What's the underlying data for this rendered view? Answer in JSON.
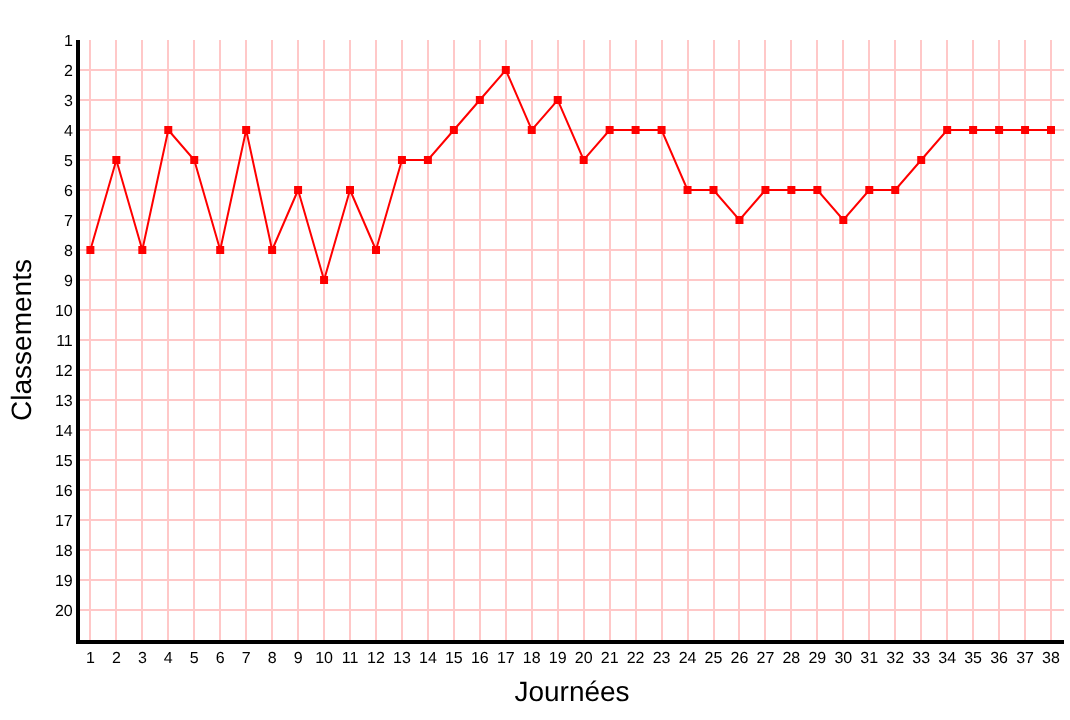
{
  "chart_data": {
    "type": "line",
    "xlabel": "Journées",
    "ylabel": "Classements",
    "x": [
      1,
      2,
      3,
      4,
      5,
      6,
      7,
      8,
      9,
      10,
      11,
      12,
      13,
      14,
      15,
      16,
      17,
      18,
      19,
      20,
      21,
      22,
      23,
      24,
      25,
      26,
      27,
      28,
      29,
      30,
      31,
      32,
      33,
      34,
      35,
      36,
      37,
      38
    ],
    "series": [
      {
        "color": "#ff0000",
        "values": [
          8,
          5,
          8,
          4,
          5,
          8,
          4,
          8,
          6,
          9,
          6,
          8,
          5,
          5,
          4,
          3,
          2,
          4,
          3,
          5,
          4,
          4,
          4,
          6,
          6,
          7,
          6,
          6,
          6,
          7,
          6,
          6,
          5,
          4,
          4,
          4,
          4,
          4
        ]
      }
    ],
    "xlim": [
      0.6,
      38.5
    ],
    "ylim": [
      21,
      1
    ],
    "xticks": [
      1,
      2,
      3,
      4,
      5,
      6,
      7,
      8,
      9,
      10,
      11,
      12,
      13,
      14,
      15,
      16,
      17,
      18,
      19,
      20,
      21,
      22,
      23,
      24,
      25,
      26,
      27,
      28,
      29,
      30,
      31,
      32,
      33,
      34,
      35,
      36,
      37,
      38
    ],
    "yticks": [
      1,
      2,
      3,
      4,
      5,
      6,
      7,
      8,
      9,
      10,
      11,
      12,
      13,
      14,
      15,
      16,
      17,
      18,
      19,
      20
    ],
    "grid": true,
    "marker": "square",
    "line_style": "solid"
  }
}
